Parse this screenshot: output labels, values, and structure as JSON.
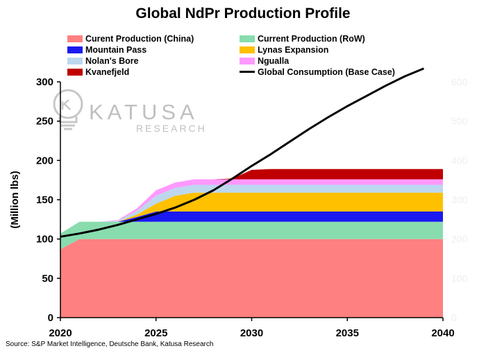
{
  "chart_data": {
    "type": "area",
    "title": "Global NdPr Production Profile",
    "ylabel": "(Million lbs)",
    "xlabel": "",
    "xlim": [
      2020,
      2040
    ],
    "ylim": [
      0,
      300
    ],
    "x_ticks": [
      "2020",
      "2025",
      "2030",
      "2035",
      "2040"
    ],
    "y_ticks": [
      "0",
      "50",
      "100",
      "150",
      "200",
      "250",
      "300"
    ],
    "right_y_ticks": [
      "0",
      "100",
      "200",
      "300",
      "400",
      "500",
      "600"
    ],
    "x": [
      2020,
      2021,
      2022,
      2023,
      2024,
      2025,
      2026,
      2027,
      2028,
      2029,
      2030,
      2031,
      2032,
      2033,
      2034,
      2035,
      2036,
      2037,
      2038,
      2039,
      2040
    ],
    "series": [
      {
        "name": "Curent Production (China)",
        "color": "#FF8080",
        "values": [
          87,
          100,
          100,
          100,
          100,
          100,
          100,
          100,
          100,
          100,
          100,
          100,
          100,
          100,
          100,
          100,
          100,
          100,
          100,
          100,
          100
        ]
      },
      {
        "name": "Current Production (RoW)",
        "color": "#88DCAE",
        "values": [
          20,
          22,
          22,
          22,
          22,
          22,
          22,
          22,
          22,
          22,
          22,
          22,
          22,
          22,
          22,
          22,
          22,
          22,
          22,
          22,
          22
        ]
      },
      {
        "name": "Mountain Pass",
        "color": "#1A1AF0",
        "values": [
          0,
          0,
          0,
          0,
          6,
          13,
          13,
          13,
          13,
          13,
          13,
          13,
          13,
          13,
          13,
          13,
          13,
          13,
          13,
          13,
          13
        ]
      },
      {
        "name": "Lynas Expansion",
        "color": "#FFC000",
        "values": [
          0,
          0,
          0,
          0,
          3,
          10,
          20,
          24,
          24,
          24,
          24,
          24,
          24,
          24,
          24,
          24,
          24,
          24,
          24,
          24,
          24
        ]
      },
      {
        "name": "Nolan's Bore",
        "color": "#BDD7EE",
        "values": [
          0,
          0,
          0,
          1,
          5,
          10,
          10,
          10,
          10,
          10,
          10,
          10,
          10,
          10,
          10,
          10,
          10,
          10,
          10,
          10,
          10
        ]
      },
      {
        "name": "Ngualla",
        "color": "#FF99FF",
        "values": [
          0,
          0,
          0,
          1,
          3,
          7,
          7,
          7,
          7,
          7,
          7,
          7,
          7,
          7,
          7,
          7,
          7,
          7,
          7,
          7,
          7
        ]
      },
      {
        "name": "Kvanefjeld",
        "color": "#C00000",
        "values": [
          0,
          0,
          0,
          0,
          0,
          0,
          0,
          0,
          0,
          1,
          12,
          13,
          13,
          13,
          13,
          13,
          13,
          13,
          13,
          13,
          13
        ]
      }
    ],
    "line_series": {
      "name": "Global Consumption (Base Case)",
      "color": "#000000",
      "x": [
        2020,
        2021,
        2022,
        2023,
        2024,
        2025,
        2026,
        2027,
        2028,
        2029,
        2030,
        2031,
        2032,
        2033,
        2034,
        2035,
        2036,
        2037,
        2038,
        2039
      ],
      "values": [
        103,
        107,
        112,
        118,
        125,
        132,
        140,
        150,
        162,
        177,
        193,
        208,
        224,
        240,
        255,
        269,
        282,
        295,
        307,
        317
      ]
    },
    "legend_position": "top"
  },
  "watermark": {
    "brand": "KATUSA",
    "sub": "RESEARCH"
  },
  "source": "Source: S&P Market Intelligence, Deutsche Bank, Katusa Research"
}
